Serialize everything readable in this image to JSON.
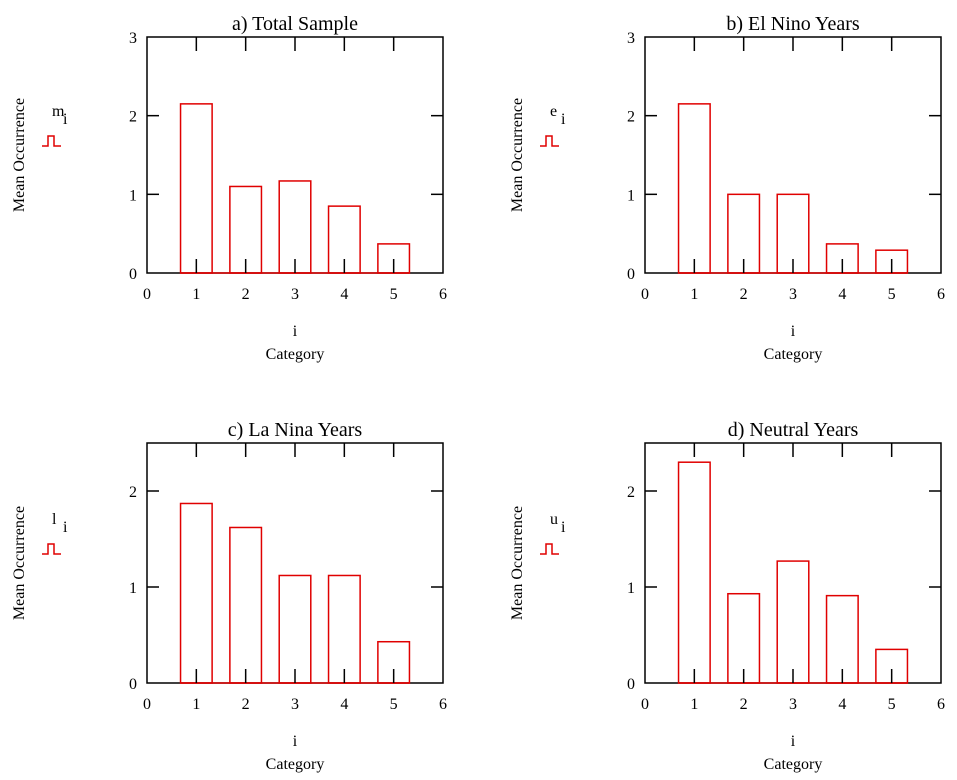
{
  "colors": {
    "bars": "#e00000",
    "axes": "#000000",
    "background": "#ffffff"
  },
  "legend_icon": "bar-trace-icon",
  "chart_data": [
    {
      "type": "bar",
      "title": "a) Total Sample",
      "ylabel": "Mean Occurrence",
      "xlabel": "Category",
      "xvar": "i",
      "trace_label": "m",
      "trace_subscript": "i",
      "x": [
        1,
        2,
        3,
        4,
        5
      ],
      "values": [
        2.15,
        1.1,
        1.17,
        0.85,
        0.37
      ],
      "xlim": [
        0,
        6
      ],
      "ylim": [
        0,
        3
      ],
      "xticks": [
        0,
        1,
        2,
        3,
        4,
        5,
        6
      ],
      "yticks": [
        0,
        1,
        2,
        3
      ]
    },
    {
      "type": "bar",
      "title": "b) El Nino Years",
      "ylabel": "Mean Occurrence",
      "xlabel": "Category",
      "xvar": "i",
      "trace_label": "e",
      "trace_subscript": "i",
      "x": [
        1,
        2,
        3,
        4,
        5
      ],
      "values": [
        2.15,
        1.0,
        1.0,
        0.37,
        0.29
      ],
      "xlim": [
        0,
        6
      ],
      "ylim": [
        0,
        3
      ],
      "xticks": [
        0,
        1,
        2,
        3,
        4,
        5,
        6
      ],
      "yticks": [
        0,
        1,
        2,
        3
      ]
    },
    {
      "type": "bar",
      "title": "c) La Nina Years",
      "ylabel": "Mean Occurrence",
      "xlabel": "Category",
      "xvar": "i",
      "trace_label": "l",
      "trace_subscript": "i",
      "x": [
        1,
        2,
        3,
        4,
        5
      ],
      "values": [
        1.87,
        1.62,
        1.12,
        1.12,
        0.43
      ],
      "xlim": [
        0,
        6
      ],
      "ylim": [
        0,
        2.5
      ],
      "xticks": [
        0,
        1,
        2,
        3,
        4,
        5,
        6
      ],
      "yticks": [
        0,
        1,
        2
      ]
    },
    {
      "type": "bar",
      "title": "d) Neutral Years",
      "ylabel": "Mean Occurrence",
      "xlabel": "Category",
      "xvar": "i",
      "trace_label": "u",
      "trace_subscript": "i",
      "x": [
        1,
        2,
        3,
        4,
        5
      ],
      "values": [
        2.3,
        0.93,
        1.27,
        0.91,
        0.35
      ],
      "xlim": [
        0,
        6
      ],
      "ylim": [
        0,
        2.5
      ],
      "xticks": [
        0,
        1,
        2,
        3,
        4,
        5,
        6
      ],
      "yticks": [
        0,
        1,
        2
      ]
    }
  ]
}
